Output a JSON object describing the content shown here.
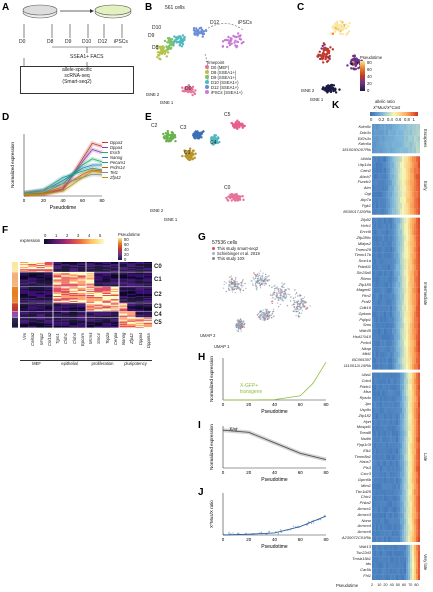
{
  "panelA": {
    "label": "A",
    "timepoints": [
      "D0",
      "D8",
      "D9",
      "D10",
      "D12",
      "iPSCs"
    ],
    "facs_label": "SSEA1+ FACS",
    "method_lines": [
      "allele-specific",
      "scRNA-seq",
      "(Smart-seq2)"
    ]
  },
  "panelB": {
    "label": "B",
    "cells_label": "561 cells",
    "legend_title": "Timepoint",
    "legend": [
      {
        "name": "D0 (MEF)",
        "color": "#e8739a"
      },
      {
        "name": "D8 (SSEA1+)",
        "color": "#b7c24a"
      },
      {
        "name": "D9 (SSEA1+)",
        "color": "#7ec36b"
      },
      {
        "name": "D10 (SSEA1+)",
        "color": "#4fb8c0"
      },
      {
        "name": "D12 (SSEA1+)",
        "color": "#6c8fd8"
      },
      {
        "name": "iPSCs (SSEA1+)",
        "color": "#c77bd8"
      }
    ],
    "annotations": [
      "D12",
      "iPSCs",
      "D10",
      "D9",
      "D8",
      "D0"
    ],
    "axes": [
      "tSNE 1",
      "tSNE 2"
    ]
  },
  "panelC": {
    "label": "C",
    "legend_title": "Pseudotime",
    "ticks": [
      "80",
      "60",
      "40",
      "20",
      "0"
    ],
    "axes": [
      "tSNE 1",
      "tSNE 2"
    ]
  },
  "panelD": {
    "label": "D",
    "chart_data": {
      "type": "line",
      "xlabel": "Pseudotime",
      "ylabel": "Normalized expression",
      "xlim": [
        0,
        80
      ],
      "x": [
        0,
        20,
        40,
        60,
        70,
        80
      ],
      "series": [
        {
          "name": "Dppa3",
          "color": "#c0392b",
          "values": [
            0.02,
            0.03,
            0.1,
            0.6,
            0.85,
            0.8
          ]
        },
        {
          "name": "Dppa4",
          "color": "#8e44ad",
          "values": [
            0.02,
            0.03,
            0.12,
            0.55,
            0.75,
            0.7
          ]
        },
        {
          "name": "Esrrb",
          "color": "#27ae60",
          "values": [
            0.03,
            0.05,
            0.2,
            0.5,
            0.6,
            0.55
          ]
        },
        {
          "name": "Nanog",
          "color": "#2980b9",
          "values": [
            0.05,
            0.08,
            0.25,
            0.45,
            0.5,
            0.5
          ]
        },
        {
          "name": "Pecam1",
          "color": "#16a085",
          "values": [
            0.05,
            0.1,
            0.3,
            0.4,
            0.45,
            0.42
          ]
        },
        {
          "name": "Prdm14",
          "color": "#d35400",
          "values": [
            0.02,
            0.04,
            0.15,
            0.35,
            0.42,
            0.4
          ]
        },
        {
          "name": "Tet1",
          "color": "#7f8c8d",
          "values": [
            0.06,
            0.1,
            0.2,
            0.3,
            0.35,
            0.34
          ]
        },
        {
          "name": "Zfp42",
          "color": "#b7950b",
          "values": [
            0.02,
            0.03,
            0.08,
            0.3,
            0.4,
            0.38
          ]
        }
      ],
      "xticks": [
        "0",
        "20",
        "40",
        "60",
        "80"
      ]
    }
  },
  "panelE": {
    "label": "E",
    "clusters": [
      "C2",
      "C3",
      "C5",
      "C4",
      "C1",
      "C0"
    ],
    "axes": [
      "tSNE 1",
      "tSNE 2"
    ]
  },
  "panelF": {
    "label": "F",
    "scale_title": "expression",
    "scale_ticks": [
      "0",
      "1",
      "2",
      "3",
      "4",
      "5"
    ],
    "pseudo_title": "Pseudotime",
    "pseudo_ticks": [
      "80",
      "60",
      "40",
      "20",
      "0"
    ],
    "clusters": [
      "C0",
      "C1",
      "C2",
      "C3",
      "C4",
      "C5"
    ],
    "groups": [
      "MEF",
      "epithelial",
      "proliferation",
      "pluripotency"
    ],
    "genes": [
      "Vim",
      "Col6a2",
      "Mmp2",
      "Col1a2",
      "Tgm1",
      "Cldn1",
      "Cldn4",
      "Epcam",
      "Mcm4",
      "Smc4",
      "Top2a",
      "Cenpa",
      "Nanog",
      "Zfp42",
      "Dppa4",
      "Dppa5a"
    ]
  },
  "panelG": {
    "label": "G",
    "cells_label": "57536 cells",
    "legend": [
      {
        "name": "This study smart-seq2",
        "color": "#d9534f"
      },
      {
        "name": "Schiebinger et al. 2019",
        "color": "#9bb3d0"
      },
      {
        "name": "This study 10X",
        "color": "#8a8a8a"
      }
    ],
    "axes": [
      "UMAP 1",
      "UMAP 2"
    ]
  },
  "panelH": {
    "label": "H",
    "chart_data": {
      "type": "line",
      "xlabel": "Pseudotime",
      "ylabel": "Normalized expression",
      "xlim": [
        0,
        80
      ],
      "x": [
        0,
        20,
        40,
        60,
        70,
        80
      ],
      "series": [
        {
          "name": "X-GFP+ transgene",
          "values": [
            0.0,
            0.0,
            0.01,
            0.1,
            0.4,
            0.9
          ]
        }
      ],
      "xticks": [
        "0",
        "20",
        "40",
        "60",
        "80"
      ]
    },
    "annotation": "X-GFP+\ntransgene"
  },
  "panelI": {
    "label": "I",
    "chart_data": {
      "type": "line",
      "xlabel": "Pseudotime",
      "ylabel": "Normalized expression",
      "title": "Xist",
      "xlim": [
        0,
        80
      ],
      "x": [
        0,
        20,
        40,
        60,
        80
      ],
      "series": [
        {
          "values": [
            0.9,
            0.85,
            0.6,
            0.35,
            0.2
          ]
        }
      ],
      "xticks": [
        "0",
        "20",
        "40",
        "60",
        "80"
      ]
    }
  },
  "panelJ": {
    "label": "J",
    "chart_data": {
      "type": "scatter",
      "xlabel": "Pseudotime",
      "ylabel": "X^Mus/X ratio",
      "xlim": [
        0,
        80
      ],
      "x": [
        0,
        20,
        40,
        60,
        80
      ],
      "series": [
        {
          "values": [
            0.0,
            0.02,
            0.05,
            0.2,
            0.45
          ]
        }
      ],
      "xticks": [
        "0",
        "20",
        "40",
        "60",
        "80"
      ]
    }
  },
  "panelK": {
    "label": "K",
    "scale_title": "allelic ratio",
    "scale_sub": "X^Mus/X^Cast",
    "scale_ticks": [
      "0",
      "0.2",
      "0.4",
      "0.6",
      "0.8",
      "1"
    ],
    "xlabel": "Pseudotime",
    "xticks": [
      "2",
      "10",
      "20",
      "40",
      "50",
      "60",
      "70",
      "80"
    ],
    "groups": [
      {
        "name": "Escapees",
        "genes": [
          "Kdm5c",
          "Ddx3x",
          "Eif2s3x",
          "Kdm6a",
          "1810030O07Rik"
        ]
      },
      {
        "name": "Early",
        "genes": [
          "Ubl4a",
          "Utp14a",
          "Cetn2",
          "Abcb7",
          "Fundc2",
          "Atrx",
          "Ogt",
          "Atp7a",
          "Pgk1",
          "8530017J20Rik"
        ]
      },
      {
        "name": "Intermediate",
        "genes": [
          "Zfp92",
          "Hcfc1",
          "Ercc6l",
          "Zfp280c",
          "Mbtps2",
          "Tmem29",
          "Timm17b",
          "Smc1a",
          "Pdzd11",
          "Slc25a5",
          "Rbmx",
          "Zfp185",
          "Maged1",
          "Pim2",
          "Praf2",
          "Cdk16",
          "Gpkow",
          "Pqbp1",
          "Sms",
          "Wdr45",
          "Hsd17b10",
          "Prdx4",
          "Nkap",
          "Mid1",
          "BC065397",
          "1110012L19Rik"
        ]
      },
      {
        "name": "Late",
        "genes": [
          "Uba1",
          "Cdx4",
          "Pbdc1",
          "Msn",
          "Rps4x",
          "Jpx",
          "Usp9x",
          "Zfp182",
          "Hprt",
          "Mospd1",
          "Tceal8",
          "Nsdhl",
          "Ppp1r3f",
          "Elk1",
          "Timm8a1",
          "Haus7",
          "Pls3",
          "Cxcr3",
          "Gpm6b",
          "Mtm1",
          "Tbc1d25",
          "Chic1",
          "Phka2",
          "Armcx1",
          "Armcx3",
          "Nono",
          "Armcx4",
          "Armcx6",
          "A230072C01Rik"
        ]
      },
      {
        "name": "Very late",
        "genes": [
          "Wdr13",
          "Tsc22d3",
          "Tmsb15b1",
          "Ids",
          "Car5b",
          "Fhl1"
        ]
      }
    ]
  }
}
